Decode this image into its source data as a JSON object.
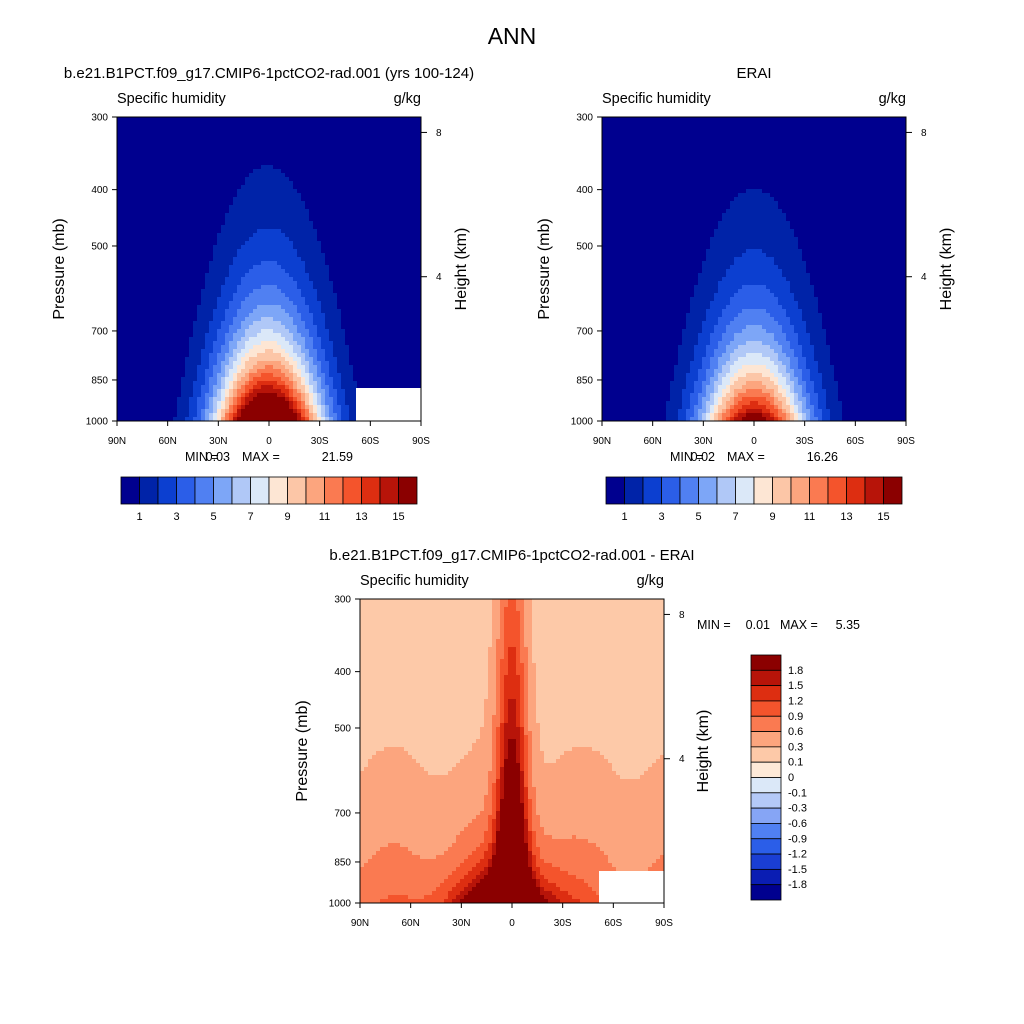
{
  "figure": {
    "title": "ANN"
  },
  "colors": {
    "abs_scale": [
      "#00008f",
      "#0023a8",
      "#0c3fd0",
      "#2b5ee8",
      "#5080f2",
      "#7da6f7",
      "#b0c8f7",
      "#dbe8f8",
      "#fde6d4",
      "#fcc6a7",
      "#fca57e",
      "#fa7a51",
      "#f4542c",
      "#dd2e11",
      "#b71409",
      "#8b0000"
    ],
    "diff_scale": [
      "#00008f",
      "#0a1db3",
      "#1a3ed3",
      "#2b5ee8",
      "#5080f2",
      "#86a5f5",
      "#b4c9f7",
      "#dbe8f8",
      "#fde9d8",
      "#fdc9a8",
      "#fca57e",
      "#fa7a51",
      "#f4542c",
      "#dd2e11",
      "#b71409",
      "#8b0000"
    ]
  },
  "chart_data": [
    {
      "type": "contour",
      "id": "model",
      "title": "b.e21.B1PCT.f09_g17.CMIP6-1pctCO2-rad.001 (yrs 100-124)",
      "left_label": "Specific humidity",
      "right_label": "g/kg",
      "xlabel": "",
      "ylabel": "Pressure (mb)",
      "y2label": "Height (km)",
      "x_ticks": [
        "90N",
        "60N",
        "30N",
        "0",
        "30S",
        "60S",
        "90S"
      ],
      "x_range": [
        90,
        -90
      ],
      "y_ticks": [
        300,
        400,
        500,
        700,
        850,
        1000
      ],
      "y_range": [
        300,
        1000
      ],
      "y_scale": "log",
      "y2_ticks": [
        8,
        4
      ],
      "min": 0.03,
      "max": 21.59,
      "stats_text": {
        "min_label": "MIN =",
        "min_value": "0.03",
        "max_label": "MAX =",
        "max_value": "21.59"
      },
      "levels": [
        1,
        2,
        3,
        4,
        5,
        6,
        7,
        8,
        9,
        10,
        11,
        12,
        13,
        14,
        15
      ],
      "colorbar_labels": [
        "1",
        "3",
        "5",
        "7",
        "9",
        "11",
        "13",
        "15"
      ],
      "surface_mask": {
        "from_lat": -50,
        "at_pressure": 930
      },
      "peak": {
        "lat": 0,
        "value_at_1000mb": 21.59
      },
      "missing": "below surface near 60S-90S"
    },
    {
      "type": "contour",
      "id": "obs",
      "title": "ERAI",
      "left_label": "Specific humidity",
      "right_label": "g/kg",
      "xlabel": "",
      "ylabel": "Pressure (mb)",
      "y2label": "Height (km)",
      "x_ticks": [
        "90N",
        "60N",
        "30N",
        "0",
        "30S",
        "60S",
        "90S"
      ],
      "x_range": [
        90,
        -90
      ],
      "y_ticks": [
        300,
        400,
        500,
        700,
        850,
        1000
      ],
      "y_range": [
        300,
        1000
      ],
      "y_scale": "log",
      "y2_ticks": [
        8,
        4
      ],
      "min": 0.02,
      "max": 16.26,
      "stats_text": {
        "min_label": "MIN =",
        "min_value": "0.02",
        "max_label": "MAX =",
        "max_value": "16.26"
      },
      "levels": [
        1,
        2,
        3,
        4,
        5,
        6,
        7,
        8,
        9,
        10,
        11,
        12,
        13,
        14,
        15
      ],
      "colorbar_labels": [
        "1",
        "3",
        "5",
        "7",
        "9",
        "11",
        "13",
        "15"
      ],
      "peak": {
        "lat": 0,
        "value_at_1000mb": 16.26
      }
    },
    {
      "type": "contour",
      "id": "diff",
      "title": "b.e21.B1PCT.f09_g17.CMIP6-1pctCO2-rad.001 - ERAI",
      "left_label": "Specific humidity",
      "right_label": "g/kg",
      "xlabel": "",
      "ylabel": "Pressure (mb)",
      "y2label": "Height (km)",
      "x_ticks": [
        "90N",
        "60N",
        "30N",
        "0",
        "30S",
        "60S",
        "90S"
      ],
      "x_range": [
        90,
        -90
      ],
      "y_ticks": [
        300,
        400,
        500,
        700,
        850,
        1000
      ],
      "y_range": [
        300,
        1000
      ],
      "y_scale": "log",
      "y2_ticks": [
        8,
        4
      ],
      "min": 0.01,
      "max": 5.35,
      "stats_text": {
        "min_label": "MIN =",
        "min_value": "0.01",
        "max_label": "MAX =",
        "max_value": "5.35"
      },
      "levels": [
        -1.8,
        -1.5,
        -1.2,
        -0.9,
        -0.6,
        -0.3,
        -0.1,
        0,
        0.1,
        0.3,
        0.6,
        0.9,
        1.2,
        1.5,
        1.8
      ],
      "colorbar_labels": [
        "1.8",
        "1.5",
        "1.2",
        "0.9",
        "0.6",
        "0.3",
        "0.1",
        "0",
        "-0.1",
        "-0.3",
        "-0.6",
        "-0.9",
        "-1.2",
        "-1.5",
        "-1.8"
      ],
      "surface_mask": {
        "from_lat": -50,
        "at_pressure": 930
      }
    }
  ]
}
